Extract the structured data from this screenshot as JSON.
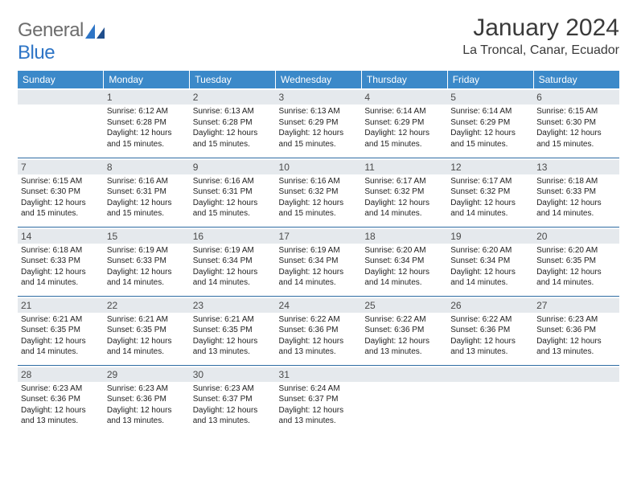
{
  "logo": {
    "word1": "General",
    "word2": "Blue"
  },
  "title": "January 2024",
  "location": "La Troncal, Canar, Ecuador",
  "colors": {
    "header_bg": "#3b89c9",
    "header_text": "#ffffff",
    "daynum_bg": "#e5e9ed",
    "rule": "#2e6ca3",
    "logo_gray": "#6d6d6d",
    "logo_blue": "#2e75c6"
  },
  "weekdays": [
    "Sunday",
    "Monday",
    "Tuesday",
    "Wednesday",
    "Thursday",
    "Friday",
    "Saturday"
  ],
  "weeks": [
    [
      {
        "n": "",
        "lines": []
      },
      {
        "n": "1",
        "lines": [
          "Sunrise: 6:12 AM",
          "Sunset: 6:28 PM",
          "Daylight: 12 hours and 15 minutes."
        ]
      },
      {
        "n": "2",
        "lines": [
          "Sunrise: 6:13 AM",
          "Sunset: 6:28 PM",
          "Daylight: 12 hours and 15 minutes."
        ]
      },
      {
        "n": "3",
        "lines": [
          "Sunrise: 6:13 AM",
          "Sunset: 6:29 PM",
          "Daylight: 12 hours and 15 minutes."
        ]
      },
      {
        "n": "4",
        "lines": [
          "Sunrise: 6:14 AM",
          "Sunset: 6:29 PM",
          "Daylight: 12 hours and 15 minutes."
        ]
      },
      {
        "n": "5",
        "lines": [
          "Sunrise: 6:14 AM",
          "Sunset: 6:29 PM",
          "Daylight: 12 hours and 15 minutes."
        ]
      },
      {
        "n": "6",
        "lines": [
          "Sunrise: 6:15 AM",
          "Sunset: 6:30 PM",
          "Daylight: 12 hours and 15 minutes."
        ]
      }
    ],
    [
      {
        "n": "7",
        "lines": [
          "Sunrise: 6:15 AM",
          "Sunset: 6:30 PM",
          "Daylight: 12 hours and 15 minutes."
        ]
      },
      {
        "n": "8",
        "lines": [
          "Sunrise: 6:16 AM",
          "Sunset: 6:31 PM",
          "Daylight: 12 hours and 15 minutes."
        ]
      },
      {
        "n": "9",
        "lines": [
          "Sunrise: 6:16 AM",
          "Sunset: 6:31 PM",
          "Daylight: 12 hours and 15 minutes."
        ]
      },
      {
        "n": "10",
        "lines": [
          "Sunrise: 6:16 AM",
          "Sunset: 6:32 PM",
          "Daylight: 12 hours and 15 minutes."
        ]
      },
      {
        "n": "11",
        "lines": [
          "Sunrise: 6:17 AM",
          "Sunset: 6:32 PM",
          "Daylight: 12 hours and 14 minutes."
        ]
      },
      {
        "n": "12",
        "lines": [
          "Sunrise: 6:17 AM",
          "Sunset: 6:32 PM",
          "Daylight: 12 hours and 14 minutes."
        ]
      },
      {
        "n": "13",
        "lines": [
          "Sunrise: 6:18 AM",
          "Sunset: 6:33 PM",
          "Daylight: 12 hours and 14 minutes."
        ]
      }
    ],
    [
      {
        "n": "14",
        "lines": [
          "Sunrise: 6:18 AM",
          "Sunset: 6:33 PM",
          "Daylight: 12 hours and 14 minutes."
        ]
      },
      {
        "n": "15",
        "lines": [
          "Sunrise: 6:19 AM",
          "Sunset: 6:33 PM",
          "Daylight: 12 hours and 14 minutes."
        ]
      },
      {
        "n": "16",
        "lines": [
          "Sunrise: 6:19 AM",
          "Sunset: 6:34 PM",
          "Daylight: 12 hours and 14 minutes."
        ]
      },
      {
        "n": "17",
        "lines": [
          "Sunrise: 6:19 AM",
          "Sunset: 6:34 PM",
          "Daylight: 12 hours and 14 minutes."
        ]
      },
      {
        "n": "18",
        "lines": [
          "Sunrise: 6:20 AM",
          "Sunset: 6:34 PM",
          "Daylight: 12 hours and 14 minutes."
        ]
      },
      {
        "n": "19",
        "lines": [
          "Sunrise: 6:20 AM",
          "Sunset: 6:34 PM",
          "Daylight: 12 hours and 14 minutes."
        ]
      },
      {
        "n": "20",
        "lines": [
          "Sunrise: 6:20 AM",
          "Sunset: 6:35 PM",
          "Daylight: 12 hours and 14 minutes."
        ]
      }
    ],
    [
      {
        "n": "21",
        "lines": [
          "Sunrise: 6:21 AM",
          "Sunset: 6:35 PM",
          "Daylight: 12 hours and 14 minutes."
        ]
      },
      {
        "n": "22",
        "lines": [
          "Sunrise: 6:21 AM",
          "Sunset: 6:35 PM",
          "Daylight: 12 hours and 14 minutes."
        ]
      },
      {
        "n": "23",
        "lines": [
          "Sunrise: 6:21 AM",
          "Sunset: 6:35 PM",
          "Daylight: 12 hours and 13 minutes."
        ]
      },
      {
        "n": "24",
        "lines": [
          "Sunrise: 6:22 AM",
          "Sunset: 6:36 PM",
          "Daylight: 12 hours and 13 minutes."
        ]
      },
      {
        "n": "25",
        "lines": [
          "Sunrise: 6:22 AM",
          "Sunset: 6:36 PM",
          "Daylight: 12 hours and 13 minutes."
        ]
      },
      {
        "n": "26",
        "lines": [
          "Sunrise: 6:22 AM",
          "Sunset: 6:36 PM",
          "Daylight: 12 hours and 13 minutes."
        ]
      },
      {
        "n": "27",
        "lines": [
          "Sunrise: 6:23 AM",
          "Sunset: 6:36 PM",
          "Daylight: 12 hours and 13 minutes."
        ]
      }
    ],
    [
      {
        "n": "28",
        "lines": [
          "Sunrise: 6:23 AM",
          "Sunset: 6:36 PM",
          "Daylight: 12 hours and 13 minutes."
        ]
      },
      {
        "n": "29",
        "lines": [
          "Sunrise: 6:23 AM",
          "Sunset: 6:36 PM",
          "Daylight: 12 hours and 13 minutes."
        ]
      },
      {
        "n": "30",
        "lines": [
          "Sunrise: 6:23 AM",
          "Sunset: 6:37 PM",
          "Daylight: 12 hours and 13 minutes."
        ]
      },
      {
        "n": "31",
        "lines": [
          "Sunrise: 6:24 AM",
          "Sunset: 6:37 PM",
          "Daylight: 12 hours and 13 minutes."
        ]
      },
      {
        "n": "",
        "lines": []
      },
      {
        "n": "",
        "lines": []
      },
      {
        "n": "",
        "lines": []
      }
    ]
  ]
}
